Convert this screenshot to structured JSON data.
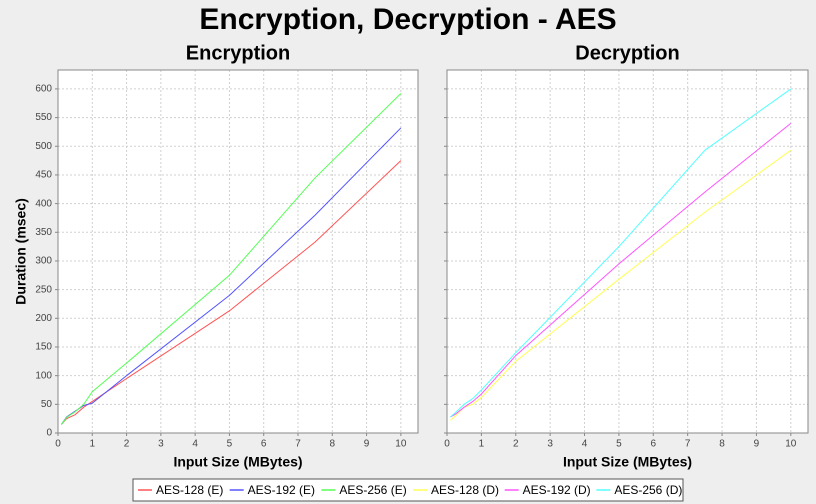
{
  "title": "Encryption, Decryption - AES",
  "chart_data": [
    {
      "type": "line",
      "title": "Encryption",
      "xlabel": "Input Size (MBytes)",
      "ylabel": "Duration (msec)",
      "x": [
        0.1,
        0.25,
        0.5,
        0.75,
        1,
        2,
        5,
        7.5,
        10
      ],
      "xlim": [
        0,
        10.5
      ],
      "xticks": [
        0,
        1,
        2,
        3,
        4,
        5,
        6,
        7,
        8,
        9,
        10
      ],
      "ylim": [
        0,
        633
      ],
      "yticks": [
        0,
        50,
        100,
        150,
        200,
        250,
        300,
        350,
        400,
        450,
        500,
        550,
        600
      ],
      "grid": true,
      "series": [
        {
          "name": "AES-128 (E)",
          "color": "#ff5555",
          "values": [
            15,
            25,
            32,
            45,
            55,
            95,
            213,
            333,
            475
          ]
        },
        {
          "name": "AES-192 (E)",
          "color": "#5555ff",
          "values": [
            15,
            28,
            38,
            48,
            52,
            100,
            240,
            380,
            532
          ]
        },
        {
          "name": "AES-256 (E)",
          "color": "#55ff55",
          "values": [
            15,
            27,
            37,
            50,
            72,
            122,
            275,
            445,
            592
          ]
        }
      ]
    },
    {
      "type": "line",
      "title": "Decryption",
      "xlabel": "Input Size (MBytes)",
      "x": [
        0.1,
        0.25,
        0.5,
        0.75,
        1,
        2,
        5,
        7.5,
        10
      ],
      "xlim": [
        0,
        10.5
      ],
      "xticks": [
        0,
        1,
        2,
        3,
        4,
        5,
        6,
        7,
        8,
        9,
        10
      ],
      "grid": true,
      "series": [
        {
          "name": "AES-128 (D)",
          "color": "#ffff55",
          "values": [
            22,
            30,
            45,
            50,
            62,
            125,
            268,
            385,
            493
          ]
        },
        {
          "name": "AES-192 (D)",
          "color": "#ff55ff",
          "values": [
            28,
            33,
            45,
            55,
            68,
            135,
            295,
            420,
            540
          ]
        },
        {
          "name": "AES-256 (D)",
          "color": "#55ffff",
          "values": [
            28,
            36,
            50,
            60,
            75,
            140,
            325,
            493,
            600
          ]
        }
      ]
    }
  ]
}
